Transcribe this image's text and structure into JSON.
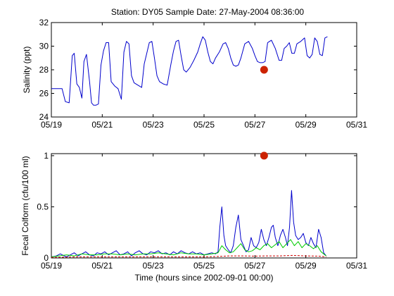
{
  "title": "Station: DY05  Sample Date: 27-May-2004 08:36:00",
  "x_tick_labels": [
    "05/19",
    "05/21",
    "05/23",
    "05/25",
    "05/27",
    "05/29",
    "05/31"
  ],
  "colors": {
    "background": "#ffffff",
    "axis": "#000000",
    "marker": "#cc2200",
    "series_blue": "#0000cc",
    "series_green": "#00cc00",
    "series_red": "#cc0000"
  },
  "chart_data": [
    {
      "type": "line",
      "ylabel": "Salinity (ppt)",
      "xlabel": "",
      "xlim": [
        0,
        12
      ],
      "ylim": [
        24,
        32
      ],
      "yticks": [
        24,
        26,
        28,
        30,
        32
      ],
      "x_units": "days since 05/19",
      "series": [
        {
          "color": "#0000cc",
          "x": [
            0.0,
            0.14,
            0.28,
            0.42,
            0.55,
            0.7,
            0.82,
            0.9,
            1.0,
            1.1,
            1.2,
            1.28,
            1.38,
            1.5,
            1.58,
            1.66,
            1.75,
            1.85,
            1.95,
            2.05,
            2.15,
            2.25,
            2.35,
            2.5,
            2.62,
            2.75,
            2.85,
            2.95,
            3.05,
            3.15,
            3.25,
            3.4,
            3.55,
            3.65,
            3.75,
            3.85,
            3.95,
            4.05,
            4.15,
            4.25,
            4.4,
            4.55,
            4.7,
            4.8,
            4.9,
            5.0,
            5.1,
            5.2,
            5.3,
            5.45,
            5.6,
            5.75,
            5.85,
            5.95,
            6.05,
            6.15,
            6.25,
            6.35,
            6.45,
            6.6,
            6.75,
            6.85,
            6.95,
            7.05,
            7.15,
            7.25,
            7.35,
            7.45,
            7.6,
            7.75,
            7.9,
            8.0,
            8.1,
            8.2,
            8.3,
            8.4,
            8.5,
            8.65,
            8.8,
            8.95,
            9.05,
            9.15,
            9.25,
            9.35,
            9.45,
            9.55,
            9.65,
            9.8,
            9.95,
            10.05,
            10.15,
            10.25,
            10.35,
            10.45,
            10.55,
            10.65,
            10.75,
            10.85
          ],
          "y": [
            26.4,
            26.4,
            26.4,
            26.4,
            25.3,
            25.2,
            29.2,
            29.4,
            26.8,
            26.5,
            25.6,
            28.7,
            29.3,
            27.0,
            25.2,
            25.0,
            25.0,
            25.1,
            28.4,
            29.6,
            30.3,
            30.3,
            27.0,
            26.6,
            26.4,
            25.5,
            29.5,
            30.4,
            30.2,
            27.5,
            26.9,
            26.7,
            26.5,
            28.5,
            29.4,
            30.3,
            30.4,
            29.0,
            27.5,
            27.0,
            26.8,
            26.7,
            28.5,
            29.6,
            30.4,
            30.5,
            29.2,
            28.0,
            27.8,
            28.2,
            28.8,
            29.5,
            30.2,
            30.8,
            30.5,
            29.5,
            28.7,
            28.5,
            29.0,
            29.5,
            30.2,
            30.3,
            29.8,
            29.0,
            28.4,
            28.3,
            28.4,
            29.0,
            30.2,
            30.4,
            29.8,
            29.2,
            28.7,
            28.6,
            28.6,
            28.7,
            30.3,
            30.5,
            29.8,
            28.8,
            28.8,
            29.8,
            30.0,
            30.3,
            29.4,
            29.4,
            30.2,
            30.4,
            30.7,
            29.2,
            29.0,
            29.3,
            30.7,
            30.4,
            29.3,
            29.2,
            30.7,
            30.8
          ]
        },
        {
          "color": "#cc2200",
          "style": "marker",
          "x": [
            8.36
          ],
          "y": [
            28.0
          ]
        }
      ]
    },
    {
      "type": "line",
      "ylabel": "Fecal Colform (cfu/100 ml)",
      "xlabel": "Time (hours since 2002-09-01 00:00)",
      "xlim": [
        0,
        12
      ],
      "ylim": [
        0,
        1.02
      ],
      "yticks": [
        0,
        0.5,
        1
      ],
      "ytick_labels": [
        "0",
        "0.5",
        "1"
      ],
      "x_units": "days since 05/19",
      "series": [
        {
          "color": "#0000cc",
          "x": [
            0.0,
            0.2,
            0.35,
            0.5,
            0.6,
            0.75,
            0.9,
            1.05,
            1.2,
            1.35,
            1.5,
            1.65,
            1.8,
            1.95,
            2.1,
            2.25,
            2.4,
            2.55,
            2.7,
            2.85,
            3.0,
            3.15,
            3.3,
            3.45,
            3.6,
            3.75,
            3.9,
            4.05,
            4.2,
            4.35,
            4.5,
            4.65,
            4.8,
            4.95,
            5.1,
            5.25,
            5.4,
            5.55,
            5.7,
            5.85,
            6.0,
            6.15,
            6.3,
            6.45,
            6.55,
            6.62,
            6.7,
            6.78,
            6.85,
            6.95,
            7.05,
            7.15,
            7.25,
            7.35,
            7.45,
            7.55,
            7.65,
            7.75,
            7.85,
            7.95,
            8.05,
            8.15,
            8.25,
            8.35,
            8.45,
            8.55,
            8.65,
            8.72,
            8.8,
            8.9,
            9.0,
            9.1,
            9.2,
            9.28,
            9.36,
            9.44,
            9.52,
            9.6,
            9.7,
            9.8,
            9.9,
            10.0,
            10.1,
            10.2,
            10.3,
            10.4,
            10.5,
            10.6,
            10.7,
            10.8
          ],
          "y": [
            0.01,
            0.02,
            0.04,
            0.02,
            0.01,
            0.03,
            0.05,
            0.02,
            0.04,
            0.06,
            0.03,
            0.02,
            0.05,
            0.04,
            0.06,
            0.03,
            0.05,
            0.07,
            0.03,
            0.04,
            0.06,
            0.02,
            0.05,
            0.07,
            0.04,
            0.03,
            0.06,
            0.05,
            0.07,
            0.04,
            0.05,
            0.03,
            0.06,
            0.04,
            0.07,
            0.05,
            0.04,
            0.06,
            0.04,
            0.05,
            0.03,
            0.04,
            0.05,
            0.04,
            0.06,
            0.3,
            0.5,
            0.22,
            0.12,
            0.08,
            0.05,
            0.12,
            0.3,
            0.42,
            0.18,
            0.12,
            0.06,
            0.08,
            0.2,
            0.12,
            0.1,
            0.15,
            0.28,
            0.18,
            0.12,
            0.2,
            0.3,
            0.32,
            0.2,
            0.12,
            0.22,
            0.28,
            0.2,
            0.12,
            0.3,
            0.66,
            0.35,
            0.22,
            0.18,
            0.2,
            0.24,
            0.15,
            0.12,
            0.2,
            0.14,
            0.1,
            0.28,
            0.2,
            0.05,
            0.02
          ]
        },
        {
          "color": "#00cc00",
          "x": [
            0.0,
            0.3,
            0.6,
            0.9,
            1.2,
            1.5,
            1.8,
            2.1,
            2.4,
            2.7,
            3.0,
            3.3,
            3.6,
            3.9,
            4.2,
            4.5,
            4.8,
            5.1,
            5.4,
            5.7,
            6.0,
            6.3,
            6.55,
            6.7,
            6.85,
            7.0,
            7.15,
            7.3,
            7.45,
            7.6,
            7.75,
            7.9,
            8.05,
            8.2,
            8.35,
            8.5,
            8.65,
            8.8,
            8.95,
            9.1,
            9.25,
            9.4,
            9.55,
            9.7,
            9.85,
            10.0,
            10.15,
            10.3,
            10.45,
            10.6,
            10.8
          ],
          "y": [
            0.01,
            0.02,
            0.03,
            0.02,
            0.04,
            0.03,
            0.03,
            0.04,
            0.04,
            0.03,
            0.04,
            0.03,
            0.04,
            0.04,
            0.05,
            0.04,
            0.03,
            0.05,
            0.04,
            0.04,
            0.03,
            0.04,
            0.05,
            0.12,
            0.08,
            0.05,
            0.06,
            0.1,
            0.14,
            0.08,
            0.06,
            0.07,
            0.1,
            0.08,
            0.12,
            0.14,
            0.1,
            0.13,
            0.16,
            0.1,
            0.14,
            0.18,
            0.12,
            0.16,
            0.1,
            0.14,
            0.12,
            0.09,
            0.12,
            0.06,
            0.02
          ]
        },
        {
          "color": "#cc0000",
          "style": "dashed",
          "x": [
            0.0,
            1.0,
            2.0,
            3.0,
            4.0,
            5.0,
            6.0,
            6.6,
            7.0,
            7.5,
            8.0,
            8.5,
            9.0,
            9.5,
            10.0,
            10.5,
            10.8
          ],
          "y": [
            0.005,
            0.01,
            0.01,
            0.01,
            0.012,
            0.01,
            0.01,
            0.015,
            0.02,
            0.02,
            0.018,
            0.02,
            0.02,
            0.025,
            0.02,
            0.018,
            0.01
          ]
        },
        {
          "color": "#cc2200",
          "style": "marker",
          "x": [
            8.36
          ],
          "y": [
            1.0
          ]
        }
      ]
    }
  ]
}
